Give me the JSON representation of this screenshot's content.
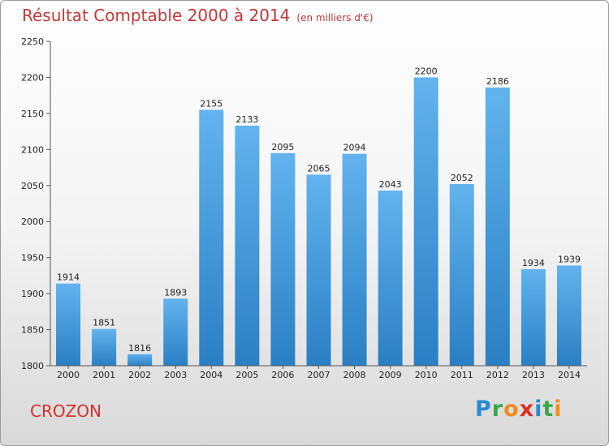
{
  "chart_data": {
    "type": "bar",
    "title": "Résultat Comptable 2000 à 2014",
    "subtitle": "(en milliers d'€)",
    "categories": [
      "2000",
      "2001",
      "2002",
      "2003",
      "2004",
      "2005",
      "2006",
      "2007",
      "2008",
      "2009",
      "2010",
      "2011",
      "2012",
      "2013",
      "2014"
    ],
    "values": [
      1914,
      1851,
      1816,
      1893,
      2155,
      2133,
      2095,
      2065,
      2094,
      2043,
      2200,
      2052,
      2186,
      1934,
      1939
    ],
    "ylim": [
      1800,
      2250
    ],
    "yticks": [
      1800,
      1850,
      1900,
      1950,
      2000,
      2050,
      2100,
      2150,
      2200,
      2250
    ],
    "grid": false,
    "bar_color": "#4a9fdf"
  },
  "place": "CROZON",
  "brand": {
    "name": "Proxiti",
    "letters": [
      {
        "ch": "P",
        "color": "#2a8ad4"
      },
      {
        "ch": "r",
        "color": "#3aa64a"
      },
      {
        "ch": "o",
        "color": "#f28c1b"
      },
      {
        "ch": "x",
        "color": "#d7302b"
      },
      {
        "ch": "i",
        "color": "#2a8ad4"
      },
      {
        "ch": "t",
        "color": "#3aa64a"
      },
      {
        "ch": "i",
        "color": "#f28c1b"
      }
    ]
  },
  "colors": {
    "title": "#c03838",
    "place": "#d7302b"
  }
}
